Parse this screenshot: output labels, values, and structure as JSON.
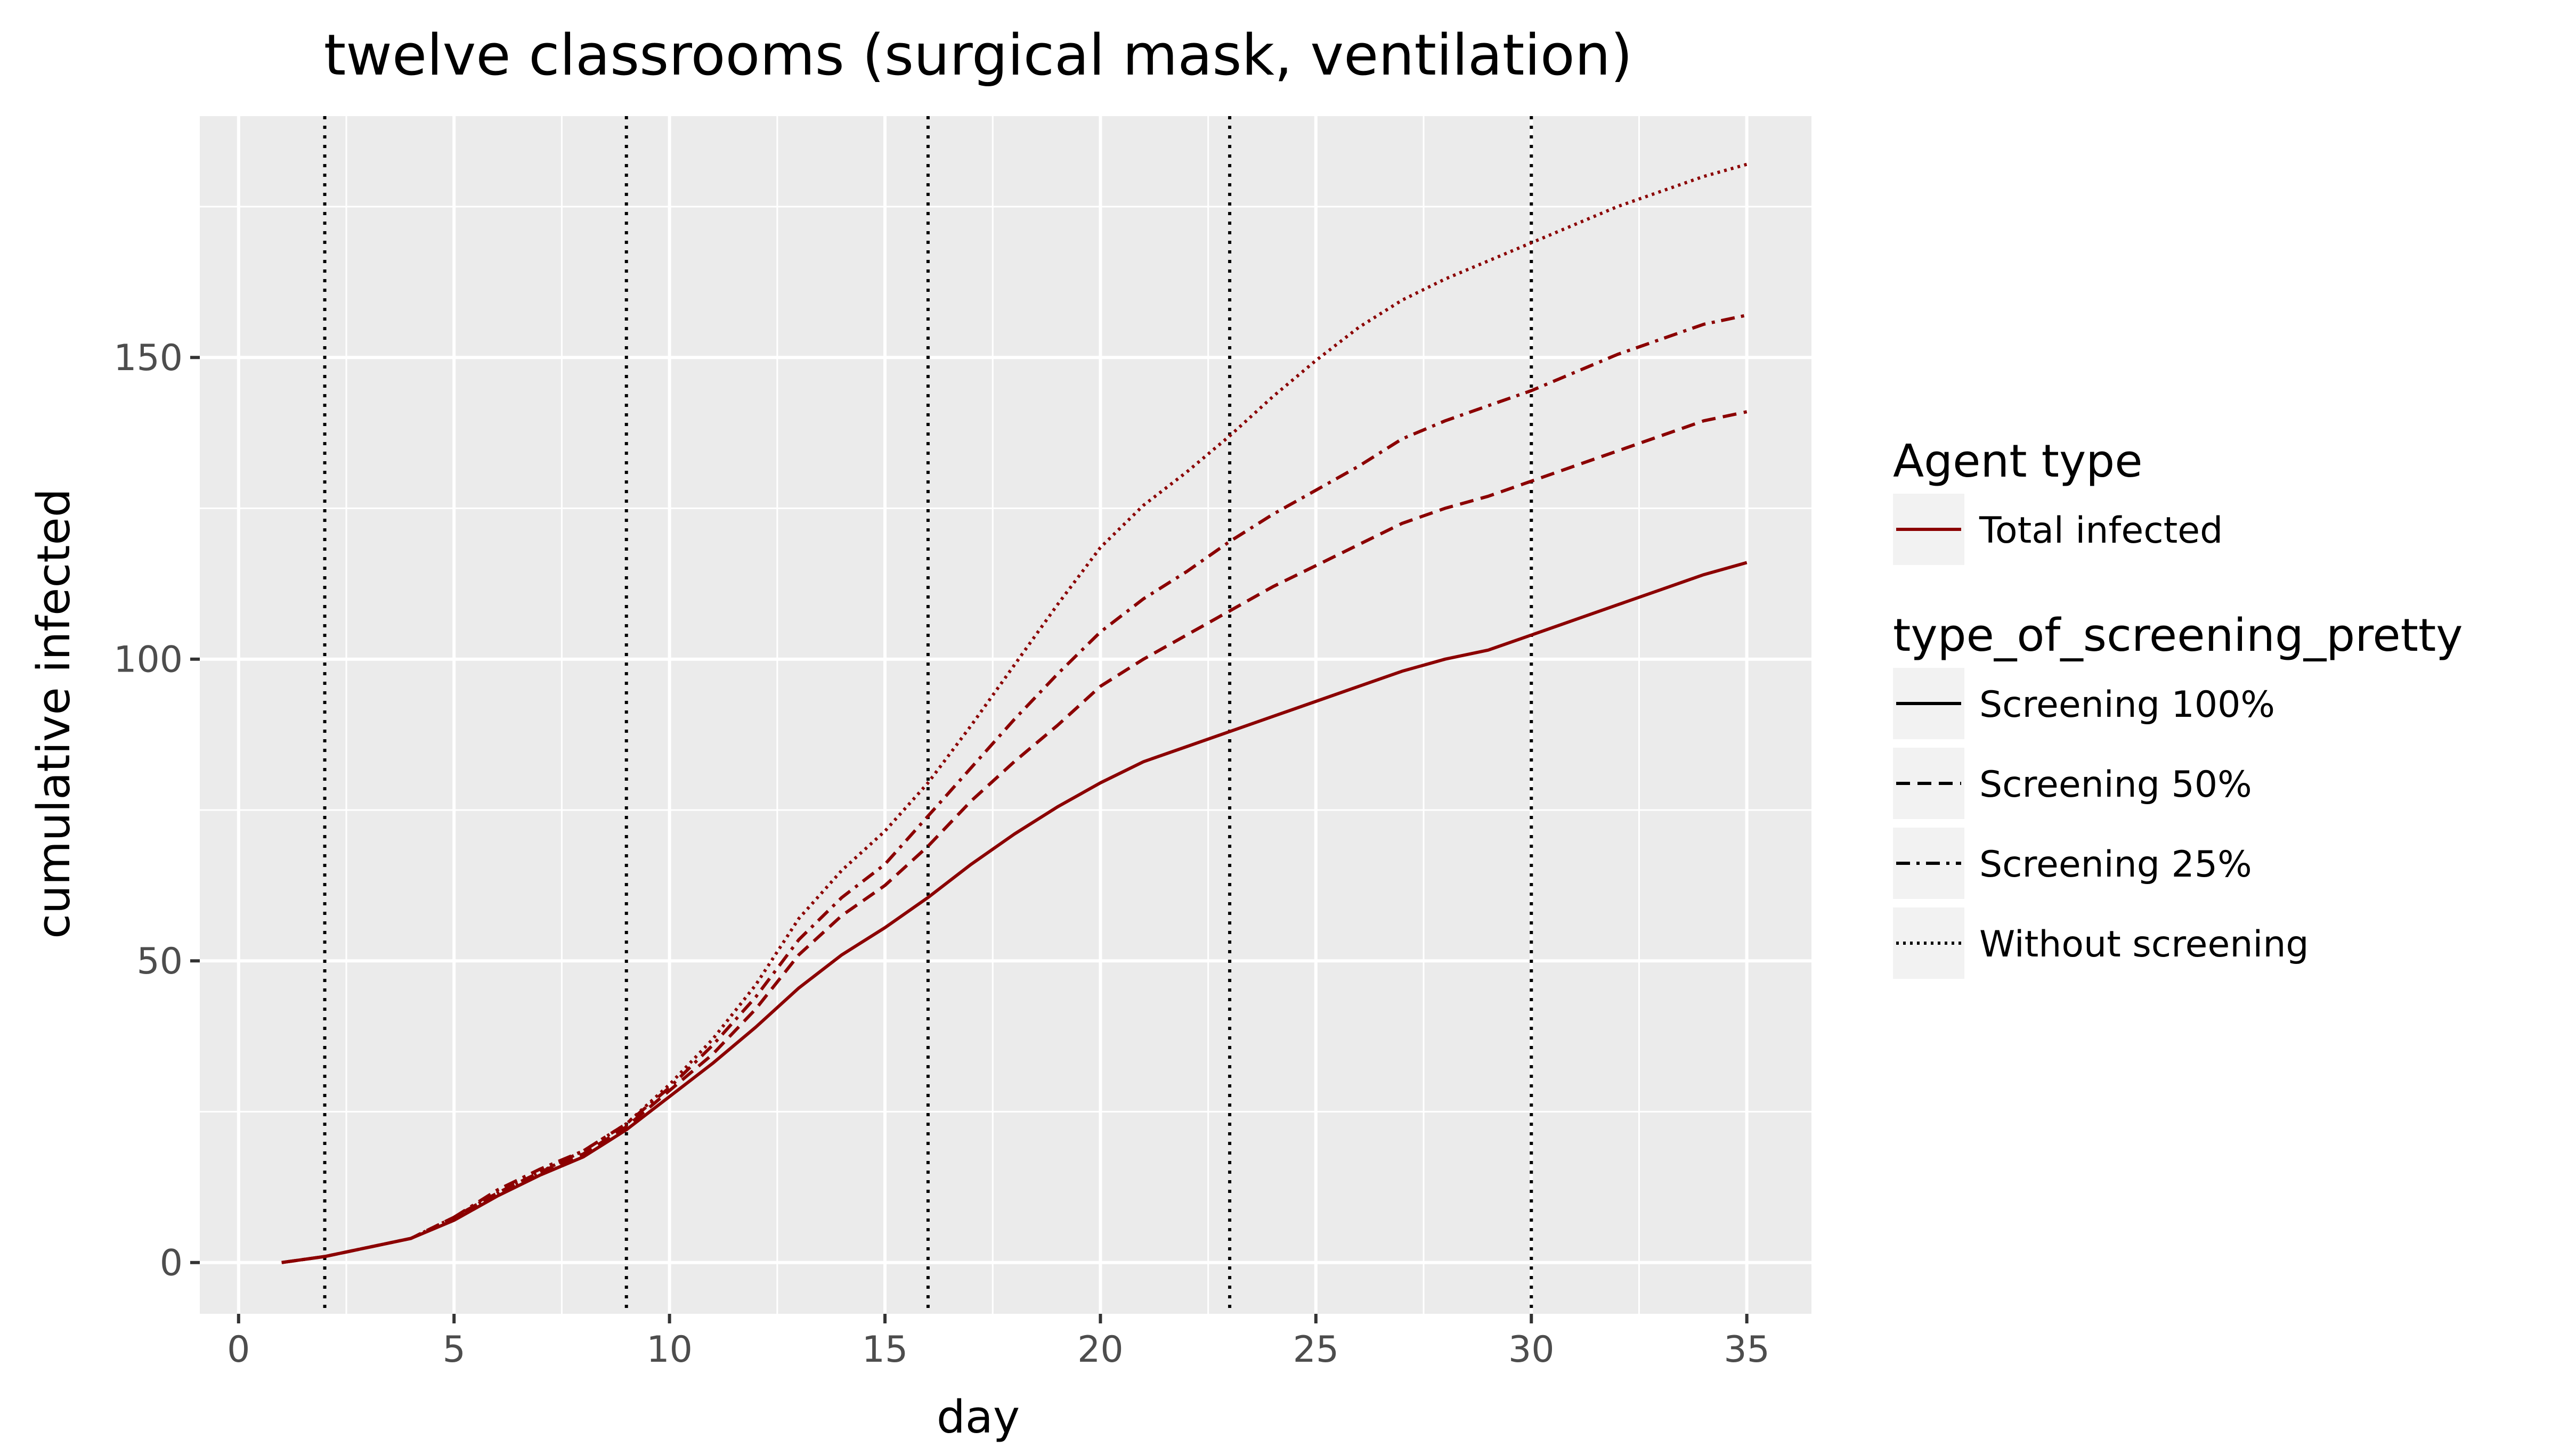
{
  "chart_data": {
    "type": "line",
    "title": "twelve classrooms (surgical mask, ventilation)",
    "xlabel": "day",
    "ylabel": "cumulative infected",
    "xlim": [
      -0.9,
      36.5
    ],
    "ylim": [
      -8.5,
      190
    ],
    "x_ticks": [
      0,
      5,
      10,
      15,
      20,
      25,
      30,
      35
    ],
    "y_ticks": [
      0,
      50,
      100,
      150
    ],
    "vlines": [
      2,
      9,
      16,
      23,
      30
    ],
    "grid": true,
    "legend_position": "right",
    "line_color": "#8b0000",
    "legends": [
      {
        "title": "Agent type",
        "entries": [
          {
            "label": "Total infected",
            "dash": "solid",
            "color": "#8b0000"
          }
        ]
      },
      {
        "title": "type_of_screening_pretty",
        "entries": [
          {
            "label": "Screening 100%",
            "dash": "solid",
            "color": "#000000"
          },
          {
            "label": "Screening 50%",
            "dash": "dashed",
            "color": "#000000"
          },
          {
            "label": "Screening 25%",
            "dash": "dashdot",
            "color": "#000000"
          },
          {
            "label": "Without screening",
            "dash": "dotted",
            "color": "#000000"
          }
        ]
      }
    ],
    "x": [
      1,
      2,
      3,
      4,
      5,
      6,
      7,
      8,
      9,
      10,
      11,
      12,
      13,
      14,
      15,
      16,
      17,
      18,
      19,
      20,
      21,
      22,
      23,
      24,
      25,
      26,
      27,
      28,
      29,
      30,
      31,
      32,
      33,
      34,
      35
    ],
    "series": [
      {
        "name": "Screening 100%",
        "dash": "solid",
        "values": [
          0,
          1,
          2.5,
          4,
          7,
          11,
          14.5,
          17.5,
          22,
          27.5,
          33,
          39,
          45.5,
          51,
          55.5,
          60.5,
          66,
          71,
          75.5,
          79.5,
          83,
          85.5,
          88,
          90.5,
          93,
          95.5,
          98,
          100,
          101.5,
          104,
          106.5,
          109,
          111.5,
          114,
          116
        ]
      },
      {
        "name": "Screening 50%",
        "dash": "dashed",
        "values": [
          0,
          1,
          2.5,
          4,
          7.5,
          11.5,
          15,
          18,
          22.5,
          28.5,
          34.5,
          42,
          51,
          57.5,
          62.5,
          69,
          76.5,
          83,
          89,
          95.5,
          100,
          104,
          108,
          112,
          115.5,
          119,
          122.5,
          125,
          127,
          129.5,
          132,
          134.5,
          137,
          139.5,
          141
        ]
      },
      {
        "name": "Screening 25%",
        "dash": "dashdot",
        "values": [
          0,
          1,
          2.5,
          4,
          7.5,
          12,
          15.5,
          18.5,
          23,
          29,
          36,
          44,
          53.5,
          60.5,
          66,
          74,
          82,
          90,
          97.5,
          104.5,
          110,
          114.5,
          119.5,
          124,
          128,
          132,
          136.5,
          139.5,
          142,
          144.5,
          147.5,
          150.5,
          153,
          155.5,
          157
        ]
      },
      {
        "name": "Without screening",
        "dash": "dotted",
        "values": [
          0,
          1,
          2.5,
          4,
          7.5,
          11.5,
          15,
          18.5,
          23,
          29.5,
          37,
          46,
          57,
          65,
          71.5,
          79.5,
          89,
          99,
          109,
          118.5,
          125.5,
          131,
          137,
          143.5,
          149.5,
          155,
          159.5,
          163,
          166,
          169,
          172,
          175,
          177.5,
          180,
          182
        ]
      }
    ]
  }
}
